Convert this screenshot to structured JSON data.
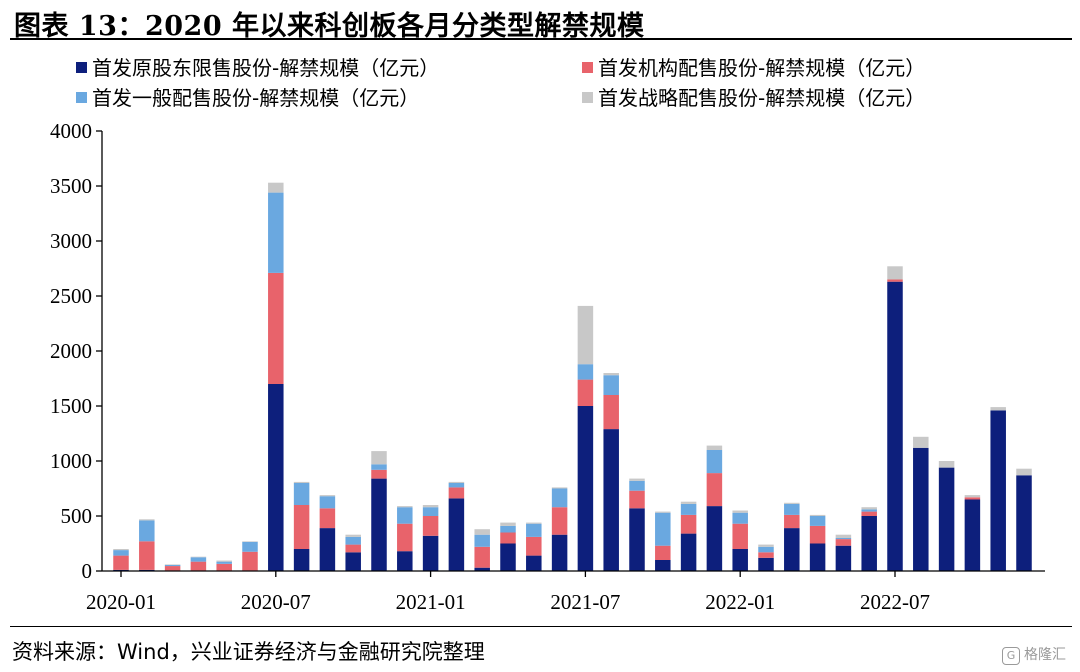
{
  "title": "图表 13：2020 年以来科创板各月分类型解禁规模",
  "source": "资料来源：Wind，兴业证券经济与金融研究院整理",
  "watermark": "格隆汇",
  "chart_data": {
    "type": "stacked-bar",
    "title": "图表 13：2020 年以来科创板各月分类型解禁规模",
    "xlabel": "",
    "ylabel": "",
    "ylim": [
      0,
      4000
    ],
    "yticks": [
      0,
      500,
      1000,
      1500,
      2000,
      2500,
      3000,
      3500,
      4000
    ],
    "x_tick_labels": [
      {
        "index": 0,
        "label": "2020-01"
      },
      {
        "index": 6,
        "label": "2020-07"
      },
      {
        "index": 12,
        "label": "2021-01"
      },
      {
        "index": 18,
        "label": "2021-07"
      },
      {
        "index": 24,
        "label": "2022-01"
      },
      {
        "index": 30,
        "label": "2022-07"
      }
    ],
    "categories": [
      "2020-01",
      "2020-02",
      "2020-03",
      "2020-04",
      "2020-05",
      "2020-06",
      "2020-07",
      "2020-08",
      "2020-09",
      "2020-10",
      "2020-11",
      "2020-12",
      "2021-01",
      "2021-02",
      "2021-03",
      "2021-04",
      "2021-05",
      "2021-06",
      "2021-07",
      "2021-08",
      "2021-09",
      "2021-10",
      "2021-11",
      "2021-12",
      "2022-01",
      "2022-02",
      "2022-03",
      "2022-04",
      "2022-05",
      "2022-06",
      "2022-07",
      "2022-08",
      "2022-09",
      "2022-10",
      "2022-11",
      "2022-12",
      "2023-01"
    ],
    "legend_position": "top",
    "grid": false,
    "series": [
      {
        "name": "首发原股东限售股份-解禁规模（亿元）",
        "color": "#0d1f7c",
        "values": [
          10,
          10,
          5,
          5,
          5,
          5,
          1700,
          200,
          390,
          170,
          840,
          180,
          320,
          660,
          30,
          250,
          140,
          330,
          1500,
          1290,
          570,
          100,
          340,
          590,
          200,
          120,
          390,
          250,
          230,
          500,
          2630,
          1120,
          940,
          650,
          1460,
          870,
          0
        ]
      },
      {
        "name": "首发机构配售股份-解禁规模（亿元）",
        "color": "#e8636b",
        "values": [
          130,
          260,
          40,
          80,
          60,
          170,
          1010,
          400,
          180,
          70,
          80,
          250,
          180,
          100,
          190,
          100,
          170,
          250,
          240,
          310,
          160,
          130,
          170,
          300,
          230,
          50,
          120,
          160,
          60,
          40,
          20,
          0,
          0,
          20,
          0,
          0,
          0
        ]
      },
      {
        "name": "首发一般配售股份-解禁规模（亿元）",
        "color": "#6aa8e0",
        "values": [
          50,
          190,
          10,
          40,
          20,
          90,
          730,
          200,
          110,
          70,
          50,
          150,
          80,
          40,
          110,
          60,
          120,
          170,
          140,
          180,
          90,
          300,
          100,
          210,
          100,
          50,
          100,
          90,
          10,
          20,
          0,
          0,
          0,
          0,
          0,
          0,
          0
        ]
      },
      {
        "name": "首发战略配售股份-解禁规模（亿元）",
        "color": "#c8c8c8",
        "values": [
          10,
          10,
          5,
          5,
          10,
          5,
          90,
          10,
          10,
          20,
          120,
          10,
          20,
          10,
          50,
          30,
          10,
          10,
          530,
          20,
          20,
          10,
          20,
          40,
          20,
          20,
          10,
          10,
          30,
          20,
          120,
          100,
          60,
          20,
          30,
          60,
          0
        ]
      }
    ]
  }
}
